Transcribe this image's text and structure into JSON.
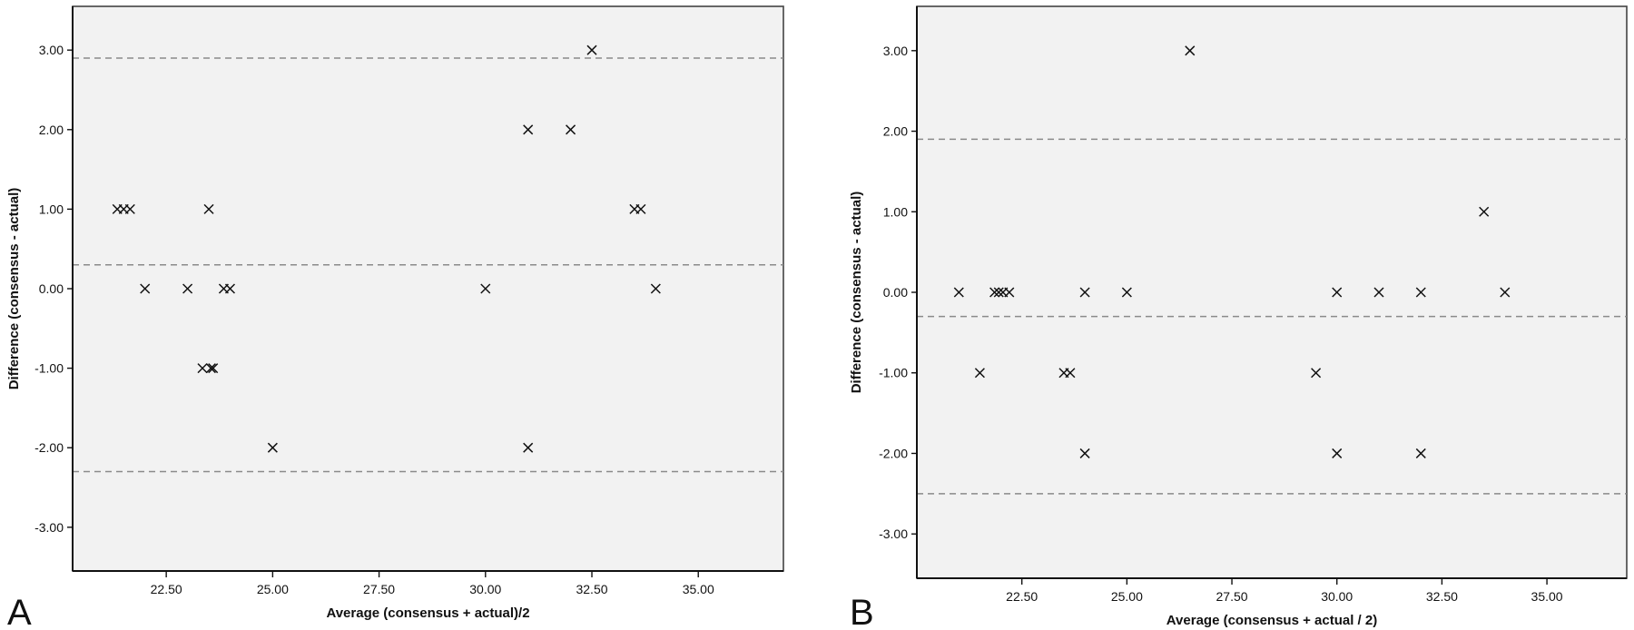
{
  "chart_data": [
    {
      "type": "scatter",
      "panel_label": "A",
      "xlabel": "Average (consensus + actual)/2",
      "ylabel": "Difference (consensus - actual)",
      "x_ticks": [
        "22.50",
        "25.00",
        "27.50",
        "30.00",
        "32.50",
        "35.00"
      ],
      "y_ticks": [
        "3.00",
        "2.00",
        "1.00",
        "0.00",
        "-1.00",
        "-2.00",
        "-3.00"
      ],
      "xlim": [
        20.3,
        37.0
      ],
      "ylim": [
        -3.55,
        3.55
      ],
      "reference_lines": [
        2.9,
        0.3,
        -2.3
      ],
      "points": [
        {
          "x": 21.35,
          "y": 1
        },
        {
          "x": 21.5,
          "y": 1
        },
        {
          "x": 21.65,
          "y": 1
        },
        {
          "x": 22.0,
          "y": 0
        },
        {
          "x": 23.0,
          "y": 0
        },
        {
          "x": 23.35,
          "y": -1
        },
        {
          "x": 23.5,
          "y": 1
        },
        {
          "x": 23.55,
          "y": -1
        },
        {
          "x": 23.6,
          "y": -1
        },
        {
          "x": 23.85,
          "y": 0
        },
        {
          "x": 24.0,
          "y": 0
        },
        {
          "x": 25.0,
          "y": -2
        },
        {
          "x": 30.0,
          "y": 0
        },
        {
          "x": 31.0,
          "y": 2
        },
        {
          "x": 31.0,
          "y": -2
        },
        {
          "x": 32.0,
          "y": 2
        },
        {
          "x": 32.5,
          "y": 3
        },
        {
          "x": 33.5,
          "y": 1
        },
        {
          "x": 33.65,
          "y": 1
        },
        {
          "x": 34.0,
          "y": 0
        }
      ]
    },
    {
      "type": "scatter",
      "panel_label": "B",
      "xlabel": "Average (consensus + actual / 2)",
      "ylabel": "Difference (consensus - actual)",
      "x_ticks": [
        "22.50",
        "25.00",
        "27.50",
        "30.00",
        "32.50",
        "35.00"
      ],
      "y_ticks": [
        "3.00",
        "2.00",
        "1.00",
        "0.00",
        "-1.00",
        "-2.00",
        "-3.00"
      ],
      "xlim": [
        20.0,
        36.9
      ],
      "ylim": [
        -3.55,
        3.55
      ],
      "reference_lines": [
        1.9,
        -0.3,
        -2.5
      ],
      "points": [
        {
          "x": 21.0,
          "y": 0
        },
        {
          "x": 21.5,
          "y": -1
        },
        {
          "x": 21.85,
          "y": 0
        },
        {
          "x": 21.95,
          "y": 0
        },
        {
          "x": 22.05,
          "y": 0
        },
        {
          "x": 22.2,
          "y": 0
        },
        {
          "x": 23.5,
          "y": -1
        },
        {
          "x": 23.65,
          "y": -1
        },
        {
          "x": 24.0,
          "y": 0
        },
        {
          "x": 24.0,
          "y": -2
        },
        {
          "x": 25.0,
          "y": 0
        },
        {
          "x": 26.5,
          "y": 3
        },
        {
          "x": 29.5,
          "y": -1
        },
        {
          "x": 30.0,
          "y": 0
        },
        {
          "x": 30.0,
          "y": -2
        },
        {
          "x": 31.0,
          "y": 0
        },
        {
          "x": 32.0,
          "y": 0
        },
        {
          "x": 32.0,
          "y": -2
        },
        {
          "x": 33.5,
          "y": 1
        },
        {
          "x": 34.0,
          "y": 0
        }
      ]
    }
  ]
}
